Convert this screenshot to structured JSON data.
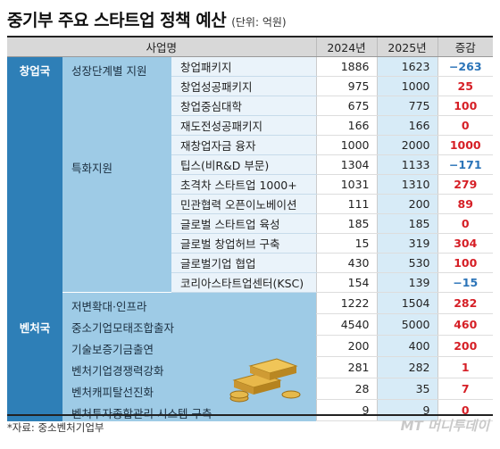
{
  "header": {
    "title": "중기부 주요 스타트업 정책 예산",
    "unit": "(단위: 억원)"
  },
  "columns": [
    "사업명",
    "2024년",
    "2025년",
    "증감"
  ],
  "groups": [
    {
      "category": "창업국",
      "subgroups": [
        {
          "name": "성장단계별 지원",
          "items": [
            {
              "name": "창업패키지",
              "y2024": "1886",
              "y2025": "1623",
              "change": "−263",
              "dir": "down"
            },
            {
              "name": "창업성공패키지",
              "y2024": "975",
              "y2025": "1000",
              "change": "25",
              "dir": "up"
            },
            {
              "name": "창업중심대학",
              "y2024": "675",
              "y2025": "775",
              "change": "100",
              "dir": "up"
            },
            {
              "name": "재도전성공패키지",
              "y2024": "166",
              "y2025": "166",
              "change": "0",
              "dir": "up"
            },
            {
              "name": "재창업자금 융자",
              "y2024": "1000",
              "y2025": "2000",
              "change": "1000",
              "dir": "up"
            }
          ]
        },
        {
          "name": "특화지원",
          "items": [
            {
              "name": "팁스(비R&D 부문)",
              "y2024": "1304",
              "y2025": "1133",
              "change": "−171",
              "dir": "down"
            },
            {
              "name": "초격차 스타트업 1000+",
              "y2024": "1031",
              "y2025": "1310",
              "change": "279",
              "dir": "up"
            },
            {
              "name": "민관협력 오픈이노베이션",
              "y2024": "111",
              "y2025": "200",
              "change": "89",
              "dir": "up"
            },
            {
              "name": "글로벌 스타트업 육성",
              "y2024": "185",
              "y2025": "185",
              "change": "0",
              "dir": "up"
            },
            {
              "name": "글로벌 창업허브 구축",
              "y2024": "15",
              "y2025": "319",
              "change": "304",
              "dir": "up"
            },
            {
              "name": "글로벌기업 협업",
              "y2024": "430",
              "y2025": "530",
              "change": "100",
              "dir": "up"
            },
            {
              "name": "코리아스타트업센터(KSC)",
              "y2024": "154",
              "y2025": "139",
              "change": "−15",
              "dir": "down"
            }
          ]
        }
      ],
      "extra": {
        "name": "저변확대·인프라",
        "y2024": "1222",
        "y2025": "1504",
        "change": "282",
        "dir": "up"
      }
    },
    {
      "category": "벤처국",
      "items": [
        {
          "name": "중소기업모태조합출자",
          "y2024": "4540",
          "y2025": "5000",
          "change": "460",
          "dir": "up"
        },
        {
          "name": "기술보증기금출연",
          "y2024": "200",
          "y2025": "400",
          "change": "200",
          "dir": "up"
        },
        {
          "name": "벤처기업경쟁력강화",
          "y2024": "281",
          "y2025": "282",
          "change": "1",
          "dir": "up"
        },
        {
          "name": "벤처캐피탈선진화",
          "y2024": "28",
          "y2025": "35",
          "change": "7",
          "dir": "up"
        },
        {
          "name": "벤처투자종합관리 시스템 구축",
          "y2024": "9",
          "y2025": "9",
          "change": "0",
          "dir": "up"
        }
      ]
    }
  ],
  "footer": {
    "source": "*자료: 중소벤처기업부",
    "brand": "MT 머니투데이"
  },
  "colors": {
    "category_bg": "#2e7fb7",
    "sub_bg": "#9ecbe6",
    "item_bg": "#eaf3fa",
    "increase": "#d61f26",
    "decrease": "#2b74b8"
  }
}
